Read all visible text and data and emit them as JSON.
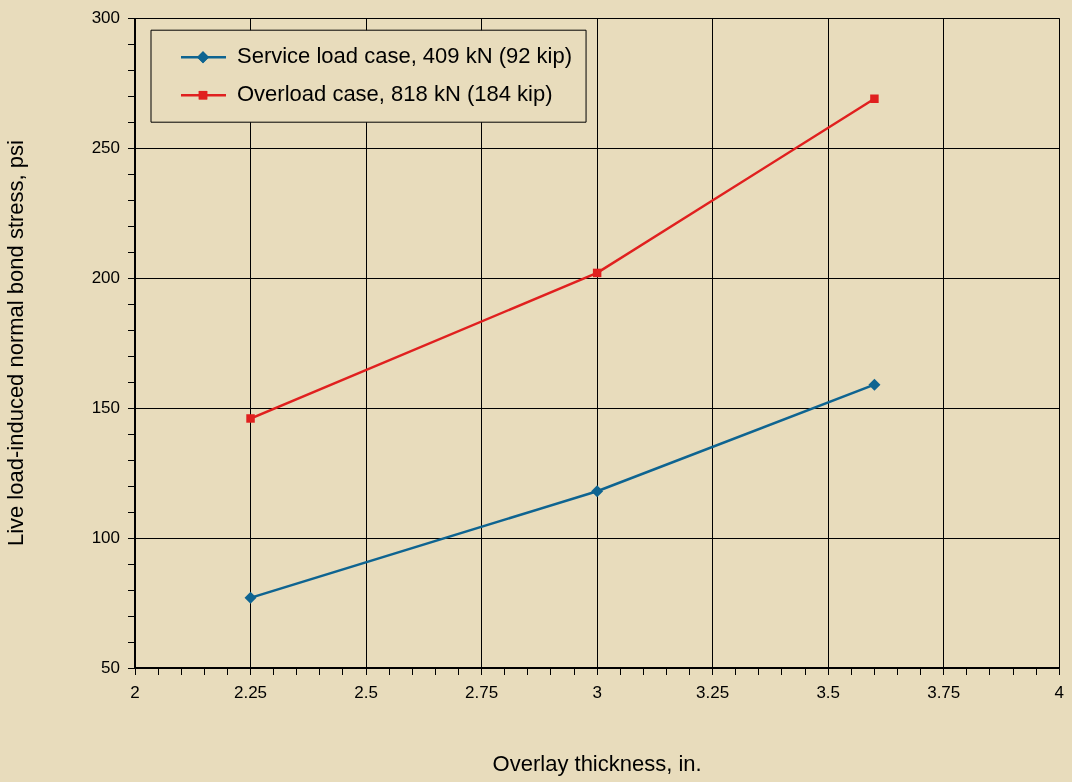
{
  "chart_data": {
    "type": "line",
    "xlabel": "Overlay thickness, in.",
    "ylabel": "Live load-induced normal bond stress, psi",
    "xlim": [
      2,
      4
    ],
    "ylim": [
      50,
      300
    ],
    "xticks": [
      2,
      {
        "value": 2.05,
        "label": null
      },
      {
        "value": 2.1,
        "label": null
      },
      {
        "value": 2.15,
        "label": null
      },
      {
        "value": 2.2,
        "label": null
      },
      2.25,
      {
        "value": 2.3,
        "label": null
      },
      {
        "value": 2.35,
        "label": null
      },
      {
        "value": 2.4,
        "label": null
      },
      {
        "value": 2.45,
        "label": null
      },
      2.5,
      {
        "value": 2.55,
        "label": null
      },
      {
        "value": 2.6,
        "label": null
      },
      {
        "value": 2.65,
        "label": null
      },
      {
        "value": 2.7,
        "label": null
      },
      2.75,
      {
        "value": 2.8,
        "label": null
      },
      {
        "value": 2.85,
        "label": null
      },
      {
        "value": 2.9,
        "label": null
      },
      {
        "value": 2.95,
        "label": null
      },
      3,
      {
        "value": 3.05,
        "label": null
      },
      {
        "value": 3.1,
        "label": null
      },
      {
        "value": 3.15,
        "label": null
      },
      {
        "value": 3.2,
        "label": null
      },
      3.25,
      {
        "value": 3.3,
        "label": null
      },
      {
        "value": 3.35,
        "label": null
      },
      {
        "value": 3.4,
        "label": null
      },
      {
        "value": 3.45,
        "label": null
      },
      3.5,
      {
        "value": 3.55,
        "label": null
      },
      {
        "value": 3.6,
        "label": null
      },
      {
        "value": 3.65,
        "label": null
      },
      {
        "value": 3.7,
        "label": null
      },
      3.75,
      {
        "value": 3.8,
        "label": null
      },
      {
        "value": 3.85,
        "label": null
      },
      {
        "value": 3.9,
        "label": null
      },
      {
        "value": 3.95,
        "label": null
      },
      4
    ],
    "yticks": [
      50,
      {
        "value": 60,
        "label": null
      },
      {
        "value": 70,
        "label": null
      },
      {
        "value": 80,
        "label": null
      },
      {
        "value": 90,
        "label": null
      },
      100,
      {
        "value": 110,
        "label": null
      },
      {
        "value": 120,
        "label": null
      },
      {
        "value": 130,
        "label": null
      },
      {
        "value": 140,
        "label": null
      },
      150,
      {
        "value": 160,
        "label": null
      },
      {
        "value": 170,
        "label": null
      },
      {
        "value": 180,
        "label": null
      },
      {
        "value": 190,
        "label": null
      },
      200,
      {
        "value": 210,
        "label": null
      },
      {
        "value": 220,
        "label": null
      },
      {
        "value": 230,
        "label": null
      },
      {
        "value": 240,
        "label": null
      },
      250,
      {
        "value": 260,
        "label": null
      },
      {
        "value": 270,
        "label": null
      },
      {
        "value": 280,
        "label": null
      },
      {
        "value": 290,
        "label": null
      },
      300
    ],
    "grid": true,
    "legend": "top left",
    "line_style": "solid",
    "x": [
      2.25,
      3,
      3.6
    ],
    "series": [
      {
        "name": "Service load case, 409 kN (92 kip)",
        "color": "#0e6491",
        "marker": "diamond",
        "values": [
          77,
          118,
          159
        ]
      },
      {
        "name": "Overload case, 818 kN (184 kip)",
        "color": "#e0201f",
        "marker": "square",
        "values": [
          146,
          202,
          269
        ]
      }
    ]
  }
}
